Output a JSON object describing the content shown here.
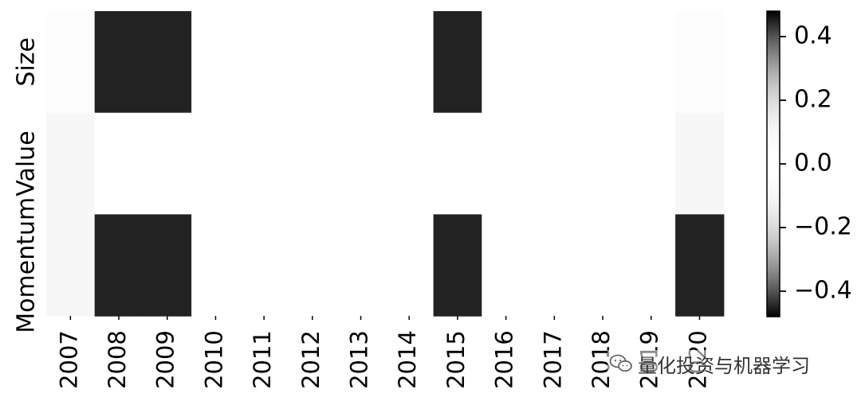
{
  "chart_data": {
    "type": "heatmap",
    "title": "",
    "xlabel": "",
    "ylabel": "",
    "x": [
      "2007",
      "2008",
      "2009",
      "2010",
      "2011",
      "2012",
      "2013",
      "2014",
      "2015",
      "2016",
      "2017",
      "2018",
      "2019",
      "2020"
    ],
    "y": [
      "Size",
      "Value",
      "Momentum"
    ],
    "values": [
      [
        -0.05,
        0.45,
        0.45,
        0.0,
        0.0,
        0.0,
        0.0,
        0.0,
        0.45,
        0.0,
        0.02,
        0.0,
        0.02,
        0.05
      ],
      [
        -0.1,
        0.0,
        0.0,
        0.0,
        0.0,
        0.0,
        0.0,
        0.0,
        0.0,
        0.0,
        0.0,
        0.0,
        0.0,
        0.1
      ],
      [
        -0.1,
        -0.45,
        -0.45,
        0.0,
        0.0,
        0.0,
        0.0,
        0.0,
        -0.45,
        0.0,
        0.0,
        0.0,
        0.0,
        -0.45
      ]
    ],
    "colorbar": {
      "ticks": [
        "0.4",
        "0.2",
        "0.0",
        "−0.2",
        "−0.4"
      ],
      "tick_values": [
        0.4,
        0.2,
        0.0,
        -0.2,
        -0.4
      ],
      "range": [
        -0.48,
        0.48
      ]
    }
  },
  "watermark": {
    "text": "量化投资与机器学习",
    "icon": "wechat-icon"
  }
}
